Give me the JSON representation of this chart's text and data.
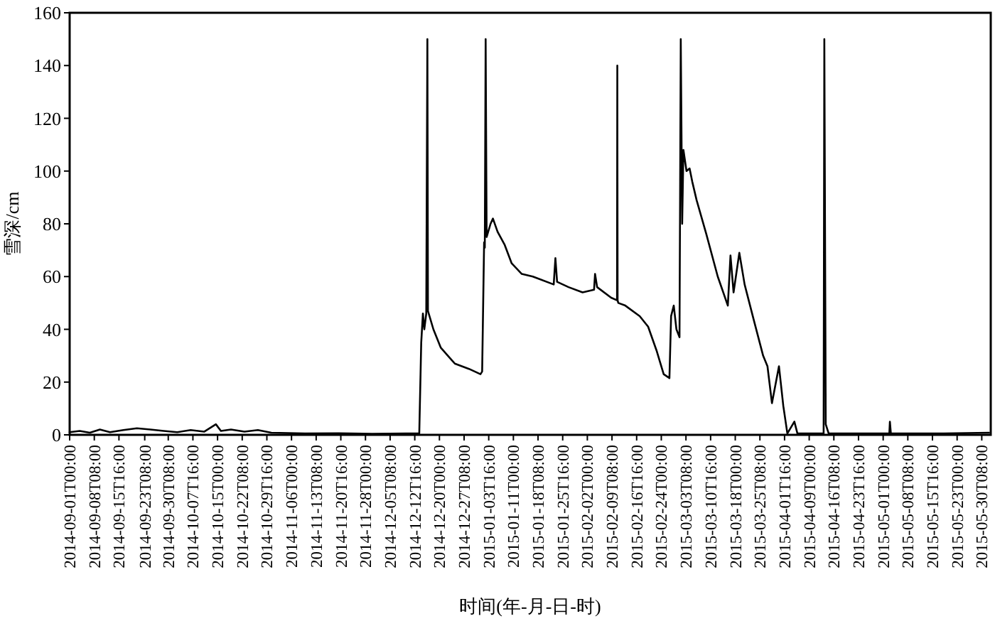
{
  "chart_data": {
    "type": "line",
    "xlabel": "时间(年-月-日-时)",
    "ylabel": "雪深/cm",
    "xlim": [
      "2014-09-01T00:00",
      "2015-06-02T00:00"
    ],
    "xticks": [
      "2014-09-01T00:00",
      "2014-09-08T08:00",
      "2014-09-15T16:00",
      "2014-09-23T08:00",
      "2014-09-30T08:00",
      "2014-10-07T16:00",
      "2014-10-15T00:00",
      "2014-10-22T08:00",
      "2014-10-29T16:00",
      "2014-11-06T00:00",
      "2014-11-13T08:00",
      "2014-11-20T16:00",
      "2014-11-28T00:00",
      "2014-12-05T08:00",
      "2014-12-12T16:00",
      "2014-12-20T00:00",
      "2014-12-27T08:00",
      "2015-01-03T16:00",
      "2015-01-11T00:00",
      "2015-01-18T08:00",
      "2015-01-25T16:00",
      "2015-02-02T00:00",
      "2015-02-09T08:00",
      "2015-02-16T16:00",
      "2015-02-24T00:00",
      "2015-03-03T08:00",
      "2015-03-10T16:00",
      "2015-03-18T00:00",
      "2015-03-25T08:00",
      "2015-04-01T16:00",
      "2015-04-09T00:00",
      "2015-04-16T08:00",
      "2015-04-23T16:00",
      "2015-05-01T00:00",
      "2015-05-08T08:00",
      "2015-05-15T16:00",
      "2015-05-23T00:00",
      "2015-05-30T08:00"
    ],
    "ylim": [
      0,
      160
    ],
    "yticks": [
      0,
      20,
      40,
      60,
      80,
      100,
      120,
      140,
      160
    ],
    "x": [
      "2014-09-01T00:00",
      "2014-09-04T00:00",
      "2014-09-07T00:00",
      "2014-09-10T00:00",
      "2014-09-13T00:00",
      "2014-09-17T00:00",
      "2014-09-21T00:00",
      "2014-09-25T00:00",
      "2014-09-29T00:00",
      "2014-10-03T00:00",
      "2014-10-07T00:00",
      "2014-10-11T00:00",
      "2014-10-14T12:00",
      "2014-10-16T00:00",
      "2014-10-19T00:00",
      "2014-10-23T00:00",
      "2014-10-27T00:00",
      "2014-10-31T00:00",
      "2014-11-10T00:00",
      "2014-11-20T00:00",
      "2014-11-30T00:00",
      "2014-12-10T00:00",
      "2014-12-14T00:00",
      "2014-12-14T14:00",
      "2014-12-15T02:00",
      "2014-12-15T12:00",
      "2014-12-16T02:00",
      "2014-12-16T10:00",
      "2014-12-16T14:00",
      "2014-12-18T05:00",
      "2014-12-20T10:00",
      "2014-12-22T12:00",
      "2014-12-24T14:00",
      "2014-12-28T19:00",
      "2015-01-01T05:00",
      "2015-01-01T17:00",
      "2015-01-02T07:00",
      "2015-01-02T12:00",
      "2015-01-02T18:00",
      "2015-01-03T01:00",
      "2015-01-04T05:00",
      "2015-01-04T22:00",
      "2015-01-06T07:00",
      "2015-01-08T10:00",
      "2015-01-10T12:00",
      "2015-01-13T12:00",
      "2015-01-16T19:00",
      "2015-01-23T00:00",
      "2015-01-23T12:00",
      "2015-01-24T00:00",
      "2015-01-27T10:00",
      "2015-01-31T14:00",
      "2015-02-04T00:00",
      "2015-02-04T07:00",
      "2015-02-04T22:00",
      "2015-02-09T02:00",
      "2015-02-10T20:00",
      "2015-02-10T22:00",
      "2015-02-11T00:00",
      "2015-02-11T05:00",
      "2015-02-13T07:00",
      "2015-02-17T14:00",
      "2015-02-20T02:00",
      "2015-02-22T14:00",
      "2015-02-24T17:00",
      "2015-02-26T10:00",
      "2015-02-26T22:00",
      "2015-02-27T17:00",
      "2015-02-28T12:00",
      "2015-03-01T10:00",
      "2015-03-01T19:00",
      "2015-03-02T05:00",
      "2015-03-02T14:00",
      "2015-03-03T12:00",
      "2015-03-04T10:00",
      "2015-03-05T05:00",
      "2015-03-06T12:00",
      "2015-03-09T10:00",
      "2015-03-12T19:00",
      "2015-03-15T19:00",
      "2015-03-16T14:00",
      "2015-03-17T12:00",
      "2015-03-19T05:00",
      "2015-03-20T19:00",
      "2015-03-23T10:00",
      "2015-03-26T07:00",
      "2015-03-27T14:00",
      "2015-03-28T22:00",
      "2015-03-31T00:00",
      "2015-04-01T07:00",
      "2015-04-02T12:00",
      "2015-04-04T14:00",
      "2015-04-05T12:00",
      "2015-04-13T07:00",
      "2015-04-13T12:00",
      "2015-04-13T22:00",
      "2015-04-14T19:00",
      "2015-04-29T00:00",
      "2015-05-02T20:00",
      "2015-05-03T00:00",
      "2015-05-03T07:00",
      "2015-05-19T00:00",
      "2015-06-01T12:00"
    ],
    "series": [
      {
        "color": "#000000",
        "values": [
          1.0,
          1.5,
          0.8,
          2.0,
          1.0,
          1.8,
          2.5,
          2.0,
          1.5,
          1.0,
          1.8,
          1.2,
          4.0,
          1.5,
          2.0,
          1.2,
          1.8,
          0.8,
          0.5,
          0.6,
          0.4,
          0.5,
          0.5,
          35,
          46,
          40,
          46,
          150,
          47,
          40,
          33,
          30,
          27,
          25,
          23,
          24,
          73,
          71,
          150,
          75,
          80,
          82,
          77,
          72,
          65,
          61,
          60,
          57,
          67,
          58,
          56,
          54,
          55,
          61,
          56,
          52,
          51,
          140,
          51,
          50,
          49,
          45,
          41,
          32,
          23,
          21.5,
          45,
          49,
          40,
          37,
          150,
          80,
          108,
          100,
          101,
          96,
          89,
          76,
          60,
          49,
          68,
          54,
          69,
          57,
          44,
          30,
          26,
          12,
          26,
          11,
          0.5,
          5,
          0.5,
          0.5,
          150,
          4,
          0.5,
          0.5,
          0.5,
          5,
          0.5,
          0.5,
          0.8
        ]
      }
    ]
  }
}
